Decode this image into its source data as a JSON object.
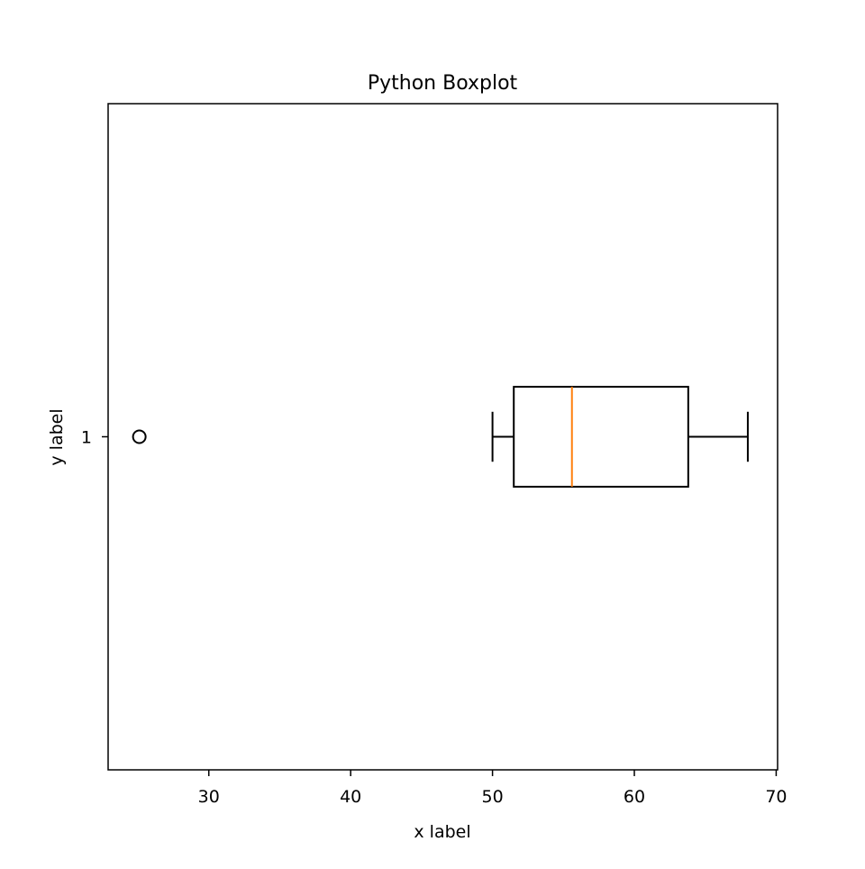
{
  "chart_data": {
    "type": "boxplot",
    "orientation": "horizontal",
    "title": "Python Boxplot",
    "xlabel": "x label",
    "ylabel": "y label",
    "xlim": [
      22.9,
      70.1
    ],
    "x_ticks": [
      30,
      40,
      50,
      60,
      70
    ],
    "y_categories": [
      "1"
    ],
    "series": [
      {
        "category": "1",
        "whisker_low": 50.0,
        "q1": 51.5,
        "median": 55.6,
        "q3": 63.8,
        "whisker_high": 68.0,
        "outliers": [
          25.1
        ]
      }
    ],
    "grid": false,
    "colors": {
      "box": "#000000",
      "median": "#ff7f0e",
      "whisker": "#000000",
      "outlier": "#000000"
    }
  }
}
